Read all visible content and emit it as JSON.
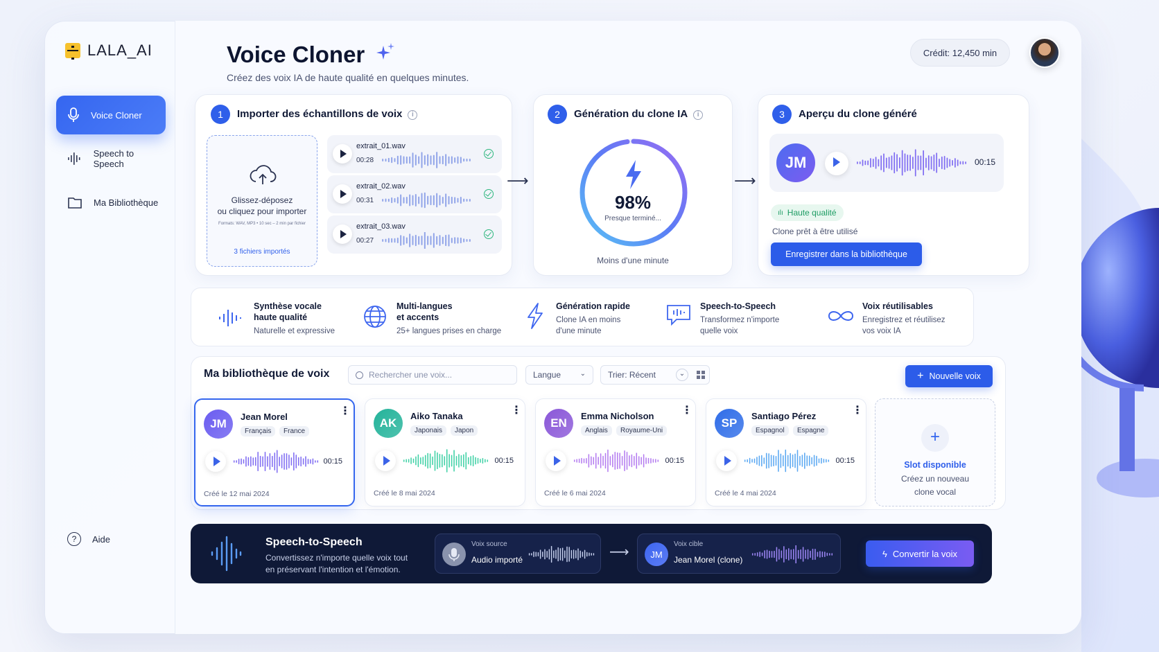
{
  "app": {
    "logo": "LALA_AI"
  },
  "sidebar": {
    "items": [
      {
        "label": "Voice Cloner",
        "icon": "mic-icon",
        "active": true
      },
      {
        "label": "Speech to Speech",
        "icon": "waveform-icon",
        "active": false
      },
      {
        "label": "Ma Bibliothèque",
        "icon": "folder-icon",
        "active": false
      }
    ],
    "help": "Aide"
  },
  "header": {
    "title": "Voice Cloner",
    "subtitle": "Créez des voix IA de haute qualité en quelques minutes.",
    "credit": "Crédit: 12,450 min"
  },
  "step1": {
    "num": "1",
    "title": "Importer des échantillons de voix",
    "dropzone": {
      "line1": "Glissez-déposez",
      "line2": "ou cliquez pour importer",
      "formats": "Formats: WAV, MP3 • 10 sec – 2 min par fichier",
      "count": "3 fichiers importés"
    },
    "files": [
      {
        "name": "extrait_01.wav",
        "time": "00:28"
      },
      {
        "name": "extrait_02.wav",
        "time": "00:31"
      },
      {
        "name": "extrait_03.wav",
        "time": "00:27"
      }
    ]
  },
  "step2": {
    "num": "2",
    "title": "Génération du clone IA",
    "percent": "98%",
    "progress": 0.98,
    "status": "Presque terminé...",
    "eta": "Moins d'une minute"
  },
  "step3": {
    "num": "3",
    "title": "Aperçu du clone généré",
    "initials": "JM",
    "duration": "00:15",
    "quality": "Haute qualité",
    "ready": "Clone prêt à être utilisé",
    "save": "Enregistrer dans la bibliothèque"
  },
  "features": [
    {
      "title": "Synthèse vocale",
      "title2": "haute qualité",
      "sub": "Naturelle et expressive",
      "sub2": ""
    },
    {
      "title": "Multi-langues",
      "title2": "et accents",
      "sub": "25+ langues prises en charge",
      "sub2": ""
    },
    {
      "title": "Génération rapide",
      "title2": "",
      "sub": "Clone IA en moins",
      "sub2": "d'une minute"
    },
    {
      "title": "Speech-to-Speech",
      "title2": "",
      "sub": "Transformez n'importe",
      "sub2": "quelle voix"
    },
    {
      "title": "Voix réutilisables",
      "title2": "",
      "sub": "Enregistrez et réutilisez",
      "sub2": "vos voix IA"
    }
  ],
  "library": {
    "title": "Ma bibliothèque de voix",
    "search_placeholder": "Rechercher une voix...",
    "lang": "Langue",
    "sort": "Trier: Récent",
    "new_voice": "Nouvelle voix",
    "voices": [
      {
        "initials": "JM",
        "name": "Jean Morel",
        "lang": "Français",
        "country": "France",
        "duration": "00:15",
        "date": "Créé le 12 mai 2024",
        "color": "#6a5cf0"
      },
      {
        "initials": "AK",
        "name": "Aiko Tanaka",
        "lang": "Japonais",
        "country": "Japon",
        "duration": "00:15",
        "date": "Créé le 8 mai 2024",
        "color": "#23b39a"
      },
      {
        "initials": "EN",
        "name": "Emma Nicholson",
        "lang": "Anglais",
        "country": "Royaume-Uni",
        "duration": "00:15",
        "date": "Créé le 6 mai 2024",
        "color": "#8a57d8"
      },
      {
        "initials": "SP",
        "name": "Santiago Pérez",
        "lang": "Espagnol",
        "country": "Espagne",
        "duration": "00:15",
        "date": "Créé le 4 mai 2024",
        "color": "#2f6de8"
      }
    ],
    "slot": {
      "title": "Slot disponible",
      "line1": "Créez un nouveau",
      "line2": "clone vocal"
    }
  },
  "sts": {
    "title": "Speech-to-Speech",
    "desc1": "Convertissez n'importe quelle voix tout",
    "desc2": "en préservant l'intention et l'émotion.",
    "source_label": "Voix source",
    "source_value": "Audio importé",
    "target_label": "Voix cible",
    "target_initials": "JM",
    "target_value": "Jean Morel (clone)",
    "convert": "Convertir la voix"
  }
}
